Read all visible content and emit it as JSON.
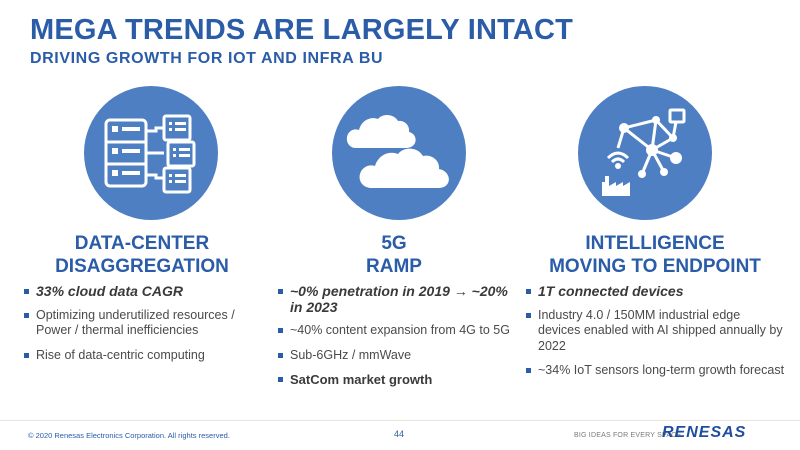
{
  "header": {
    "title": "MEGA TRENDS ARE LARGELY INTACT",
    "subtitle": "DRIVING GROWTH FOR IOT AND INFRA BU"
  },
  "colors": {
    "brand_blue": "#2a5ca8",
    "circle_blue": "#4f7fc3"
  },
  "columns": [
    {
      "icon": "data-center-server-icon",
      "heading_line1": "DATA-CENTER",
      "heading_line2": "DISAGGREGATION",
      "bullets": [
        "33% cloud data CAGR",
        "Optimizing underutilized resources / Power / thermal inefficiencies",
        "Rise of data-centric computing"
      ]
    },
    {
      "icon": "cloud-icon",
      "heading_line1": "5G",
      "heading_line2": "RAMP",
      "bullets": [
        "~0% penetration in 2019 → ~20% in 2023",
        "~40% content expansion from 4G to 5G",
        "Sub-6GHz / mmWave",
        "SatCom market growth"
      ]
    },
    {
      "icon": "iot-network-icon",
      "heading_line1": "INTELLIGENCE",
      "heading_line2": "MOVING TO ENDPOINT",
      "bullets": [
        "1T connected devices",
        "Industry 4.0 / 150MM industrial edge devices enabled with AI shipped annually by 2022",
        "~34% IoT sensors long-term growth forecast"
      ]
    }
  ],
  "footer": {
    "copyright": "© 2020 Renesas Electronics Corporation. All rights reserved.",
    "page_number": "44",
    "tagline": "BIG IDEAS FOR EVERY SPACE",
    "logo": "RENESAS"
  }
}
